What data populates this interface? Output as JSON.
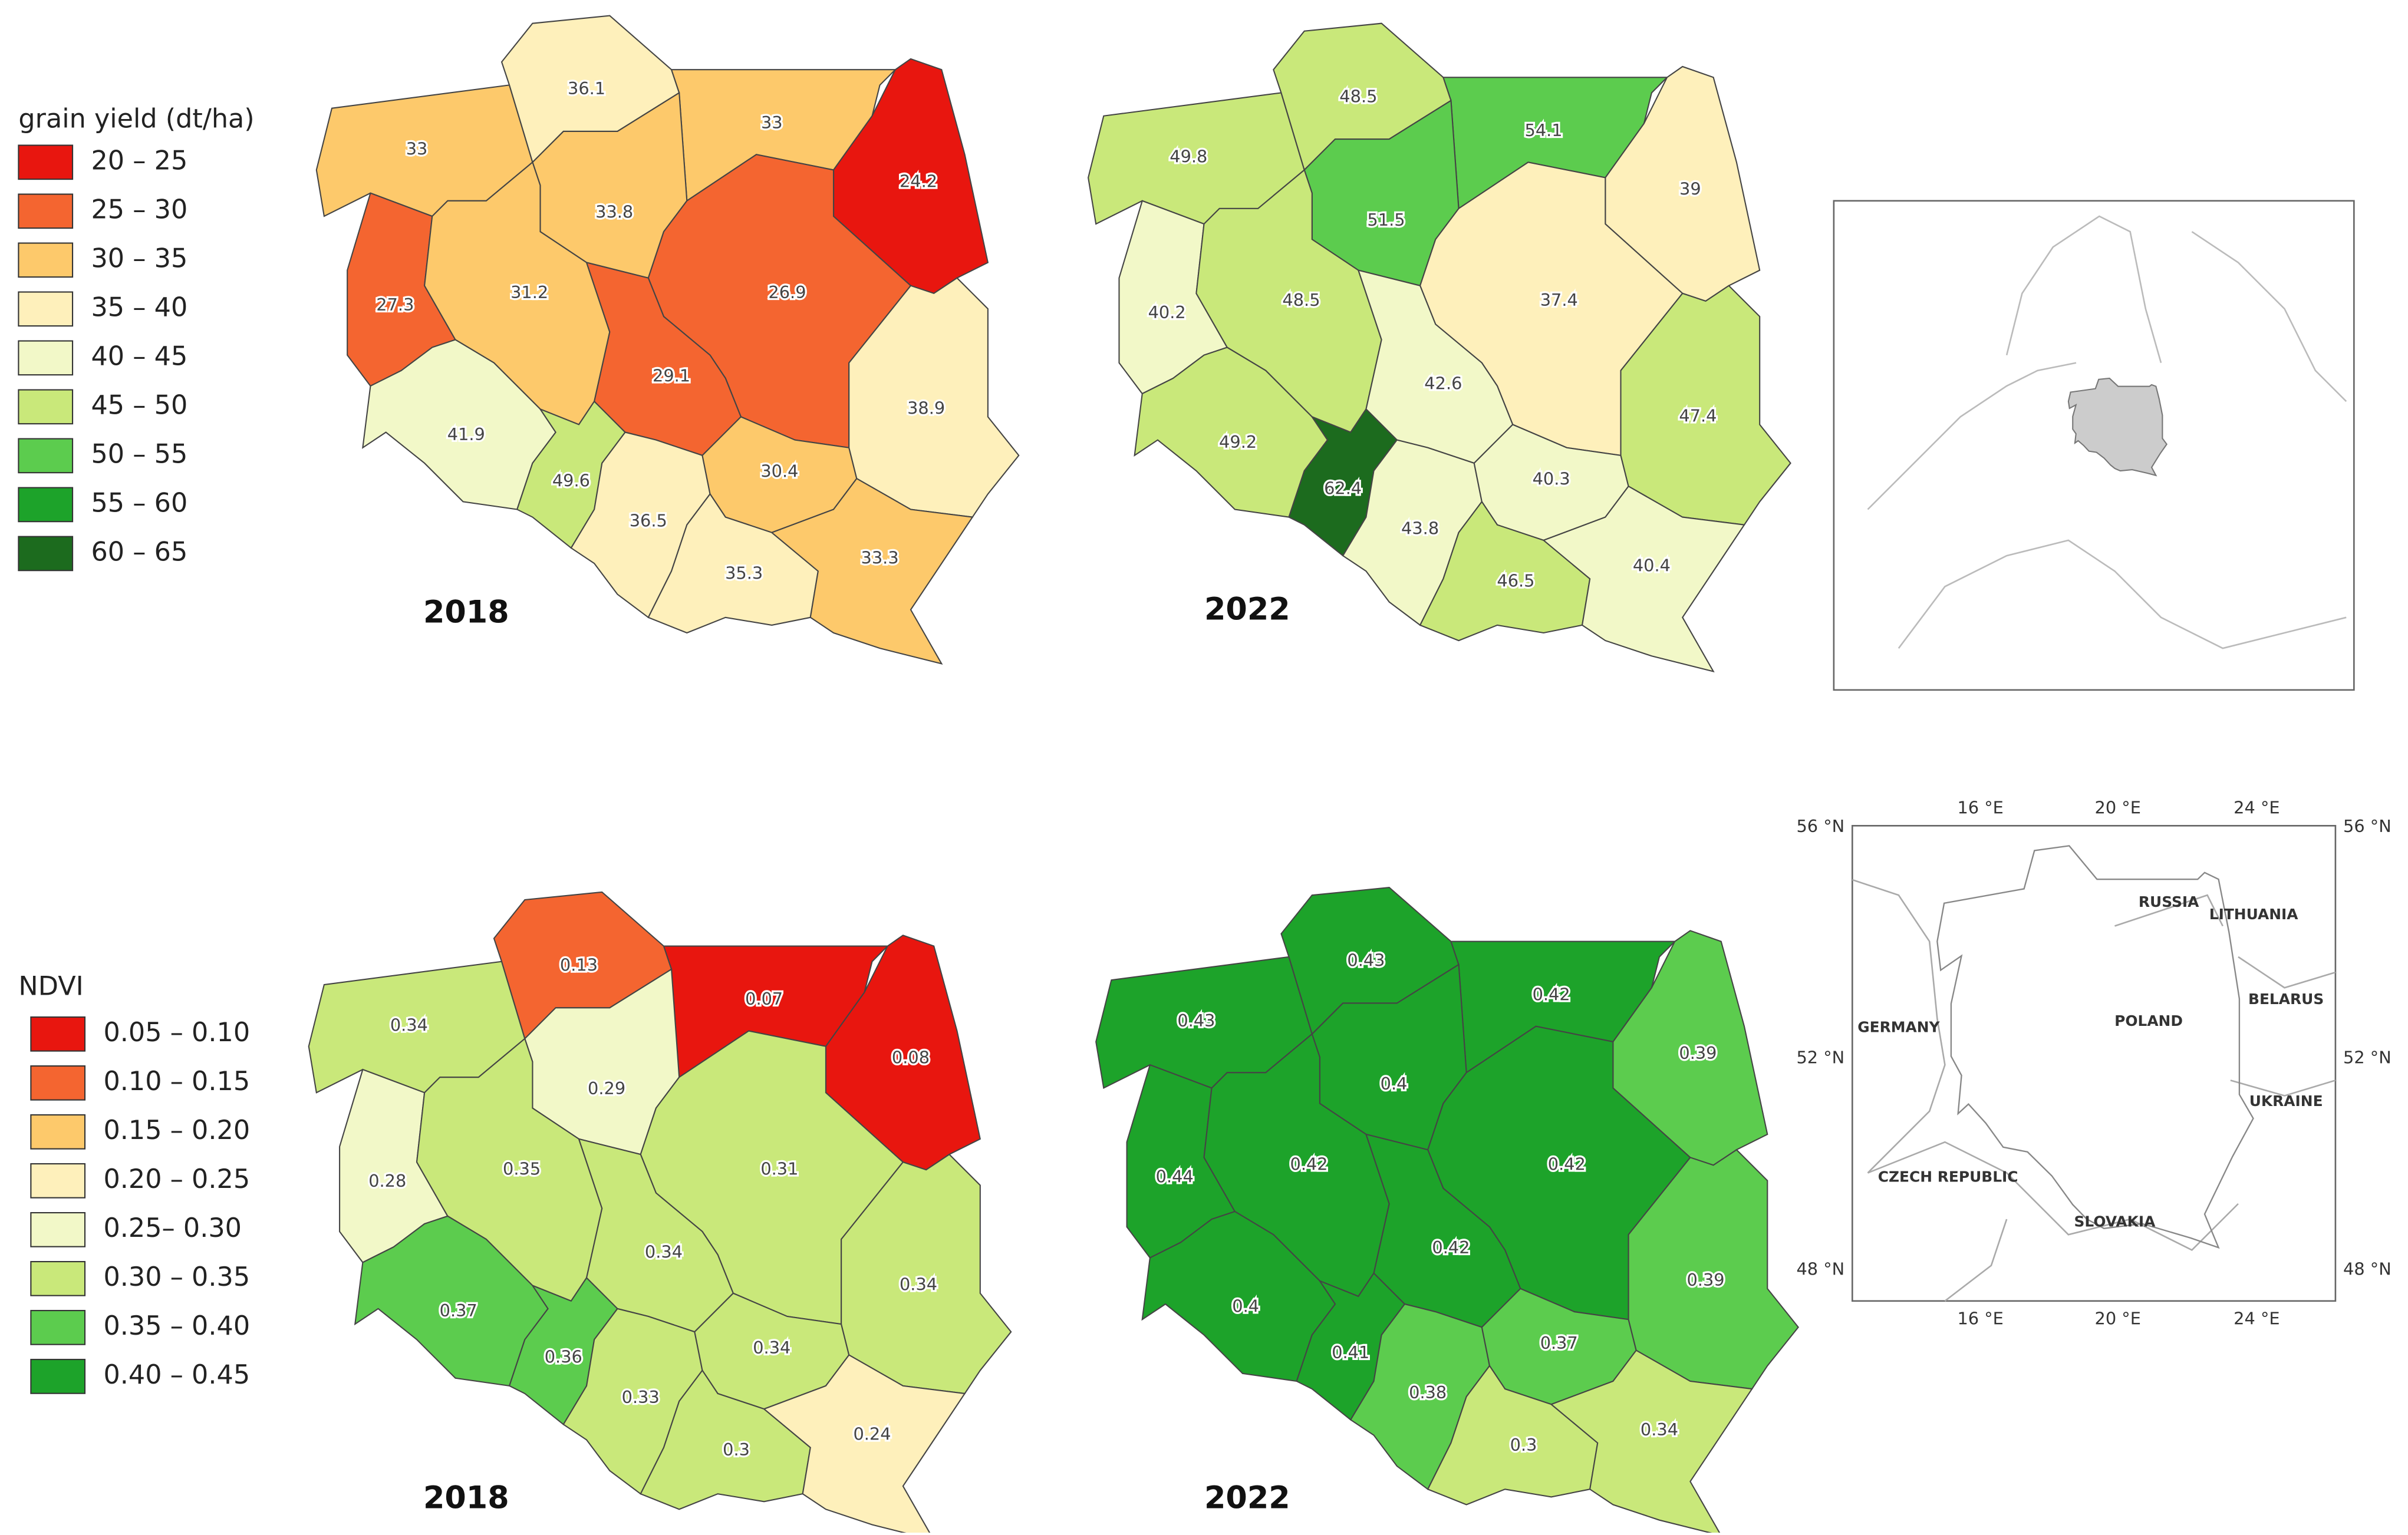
{
  "legends": [
    {
      "title": "grain yield (dt/ha)",
      "items": [
        {
          "label": "20 – 25",
          "color": "#e8160f"
        },
        {
          "label": "25 – 30",
          "color": "#f46530"
        },
        {
          "label": "30 – 35",
          "color": "#fdc96b"
        },
        {
          "label": "35 – 40",
          "color": "#fef0bb"
        },
        {
          "label": "40 – 45",
          "color": "#f2f8c8"
        },
        {
          "label": "45 – 50",
          "color": "#c9e87a"
        },
        {
          "label": "50 – 55",
          "color": "#5ccc4e"
        },
        {
          "label": "55 – 60",
          "color": "#1da32a"
        },
        {
          "label": "60 – 65",
          "color": "#1c6b1e"
        }
      ]
    },
    {
      "title": "NDVI",
      "items": [
        {
          "label": "0.05 – 0.10",
          "color": "#e8160f"
        },
        {
          "label": "0.10 – 0.15",
          "color": "#f46530"
        },
        {
          "label": "0.15 – 0.20",
          "color": "#fdc96b"
        },
        {
          "label": "0.20 – 0.25",
          "color": "#fef0bb"
        },
        {
          "label": "0.25– 0.30",
          "color": "#f2f8c8"
        },
        {
          "label": "0.30 – 0.35",
          "color": "#c9e87a"
        },
        {
          "label": "0.35 – 0.40",
          "color": "#5ccc4e"
        },
        {
          "label": "0.40 – 0.45",
          "color": "#1da32a"
        }
      ]
    }
  ],
  "maps": [
    {
      "year": "2018",
      "values": [
        33,
        36.1,
        33,
        24.2,
        33.8,
        27.3,
        31.2,
        26.9,
        29.1,
        41.9,
        49.6,
        36.5,
        30.4,
        38.9,
        35.3,
        33.3
      ],
      "colors": [
        "#fdc96b",
        "#fef0bb",
        "#fdc96b",
        "#e8160f",
        "#fdc96b",
        "#f46530",
        "#fdc96b",
        "#f46530",
        "#f46530",
        "#f2f8c8",
        "#c9e87a",
        "#fef0bb",
        "#fdc96b",
        "#fef0bb",
        "#fef0bb",
        "#fdc96b"
      ]
    },
    {
      "year": "2022",
      "values": [
        49.8,
        48.5,
        54.1,
        39,
        51.5,
        40.2,
        48.5,
        37.4,
        42.6,
        49.2,
        62.4,
        43.8,
        40.3,
        47.4,
        46.5,
        40.4
      ],
      "colors": [
        "#c9e87a",
        "#c9e87a",
        "#5ccc4e",
        "#fef0bb",
        "#5ccc4e",
        "#f2f8c8",
        "#c9e87a",
        "#fef0bb",
        "#f2f8c8",
        "#c9e87a",
        "#1c6b1e",
        "#f2f8c8",
        "#f2f8c8",
        "#c9e87a",
        "#c9e87a",
        "#f2f8c8"
      ]
    },
    {
      "year": "2018",
      "values": [
        0.34,
        0.13,
        0.07,
        0.08,
        0.29,
        0.28,
        0.35,
        0.31,
        0.34,
        0.37,
        0.36,
        0.33,
        0.34,
        0.34,
        0.3,
        0.24
      ],
      "colors": [
        "#c9e87a",
        "#f46530",
        "#e8160f",
        "#e8160f",
        "#f2f8c8",
        "#f2f8c8",
        "#c9e87a",
        "#c9e87a",
        "#c9e87a",
        "#5ccc4e",
        "#5ccc4e",
        "#c9e87a",
        "#c9e87a",
        "#c9e87a",
        "#c9e87a",
        "#fef0bb"
      ]
    },
    {
      "year": "2022",
      "values": [
        0.43,
        0.43,
        0.42,
        0.39,
        0.4,
        0.44,
        0.42,
        0.42,
        0.42,
        0.4,
        0.41,
        0.38,
        0.37,
        0.39,
        0.3,
        0.34
      ],
      "colors": [
        "#1da32a",
        "#1da32a",
        "#1da32a",
        "#5ccc4e",
        "#1da32a",
        "#1da32a",
        "#1da32a",
        "#1da32a",
        "#1da32a",
        "#1da32a",
        "#1da32a",
        "#5ccc4e",
        "#5ccc4e",
        "#5ccc4e",
        "#c9e87a",
        "#c9e87a"
      ]
    }
  ],
  "inset": {
    "lon_labels": [
      "16 °E",
      "20 °E",
      "24 °E"
    ],
    "lat_labels": [
      "56 °N",
      "52 °N",
      "48 °N"
    ],
    "countries": [
      "RUSSIA",
      "LITHUANIA",
      "GERMANY",
      "POLAND",
      "BELARUS",
      "UKRAINE",
      "CZECH REPUBLIC",
      "SLOVAKIA"
    ]
  }
}
